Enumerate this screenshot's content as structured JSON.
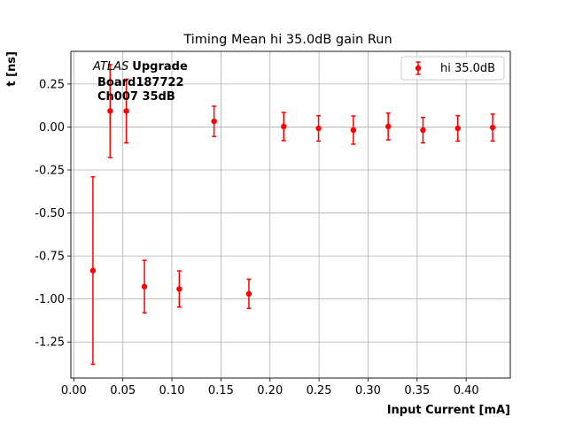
{
  "chart_data": {
    "type": "scatter",
    "title": "Timing Mean hi 35.0dB gain Run",
    "xlabel": "Input Current [mA]",
    "ylabel": "t [ns]",
    "xlim": [
      -0.003,
      0.445
    ],
    "ylim": [
      -1.46,
      0.44
    ],
    "xticks": [
      "0.00",
      "0.05",
      "0.10",
      "0.15",
      "0.20",
      "0.25",
      "0.30",
      "0.35",
      "0.40"
    ],
    "yticks": [
      "-1.25",
      "-1.00",
      "-0.75",
      "-0.50",
      "-0.25",
      "0.00",
      "0.25"
    ],
    "grid": true,
    "legend_position": "top-right",
    "annotation": {
      "experiment": "ATLAS",
      "tag": "Upgrade",
      "line2": "Board187722",
      "line3": "Ch007 35dB"
    },
    "series": [
      {
        "name": "hi 35.0dB",
        "color": "#ff0000",
        "marker": "circle",
        "points": [
          {
            "x": 0.0195,
            "y": -0.835,
            "err": 0.545
          },
          {
            "x": 0.037,
            "y": 0.093,
            "err": 0.27
          },
          {
            "x": 0.0535,
            "y": 0.093,
            "err": 0.185
          },
          {
            "x": 0.072,
            "y": -0.928,
            "err": 0.153
          },
          {
            "x": 0.1075,
            "y": -0.942,
            "err": 0.105
          },
          {
            "x": 0.143,
            "y": 0.033,
            "err": 0.088
          },
          {
            "x": 0.1785,
            "y": -0.97,
            "err": 0.085
          },
          {
            "x": 0.214,
            "y": 0.003,
            "err": 0.082
          },
          {
            "x": 0.2495,
            "y": -0.008,
            "err": 0.074
          },
          {
            "x": 0.285,
            "y": -0.018,
            "err": 0.082
          },
          {
            "x": 0.3205,
            "y": 0.003,
            "err": 0.078
          },
          {
            "x": 0.356,
            "y": -0.018,
            "err": 0.074
          },
          {
            "x": 0.3915,
            "y": -0.008,
            "err": 0.074
          },
          {
            "x": 0.427,
            "y": -0.003,
            "err": 0.078
          }
        ]
      }
    ]
  }
}
